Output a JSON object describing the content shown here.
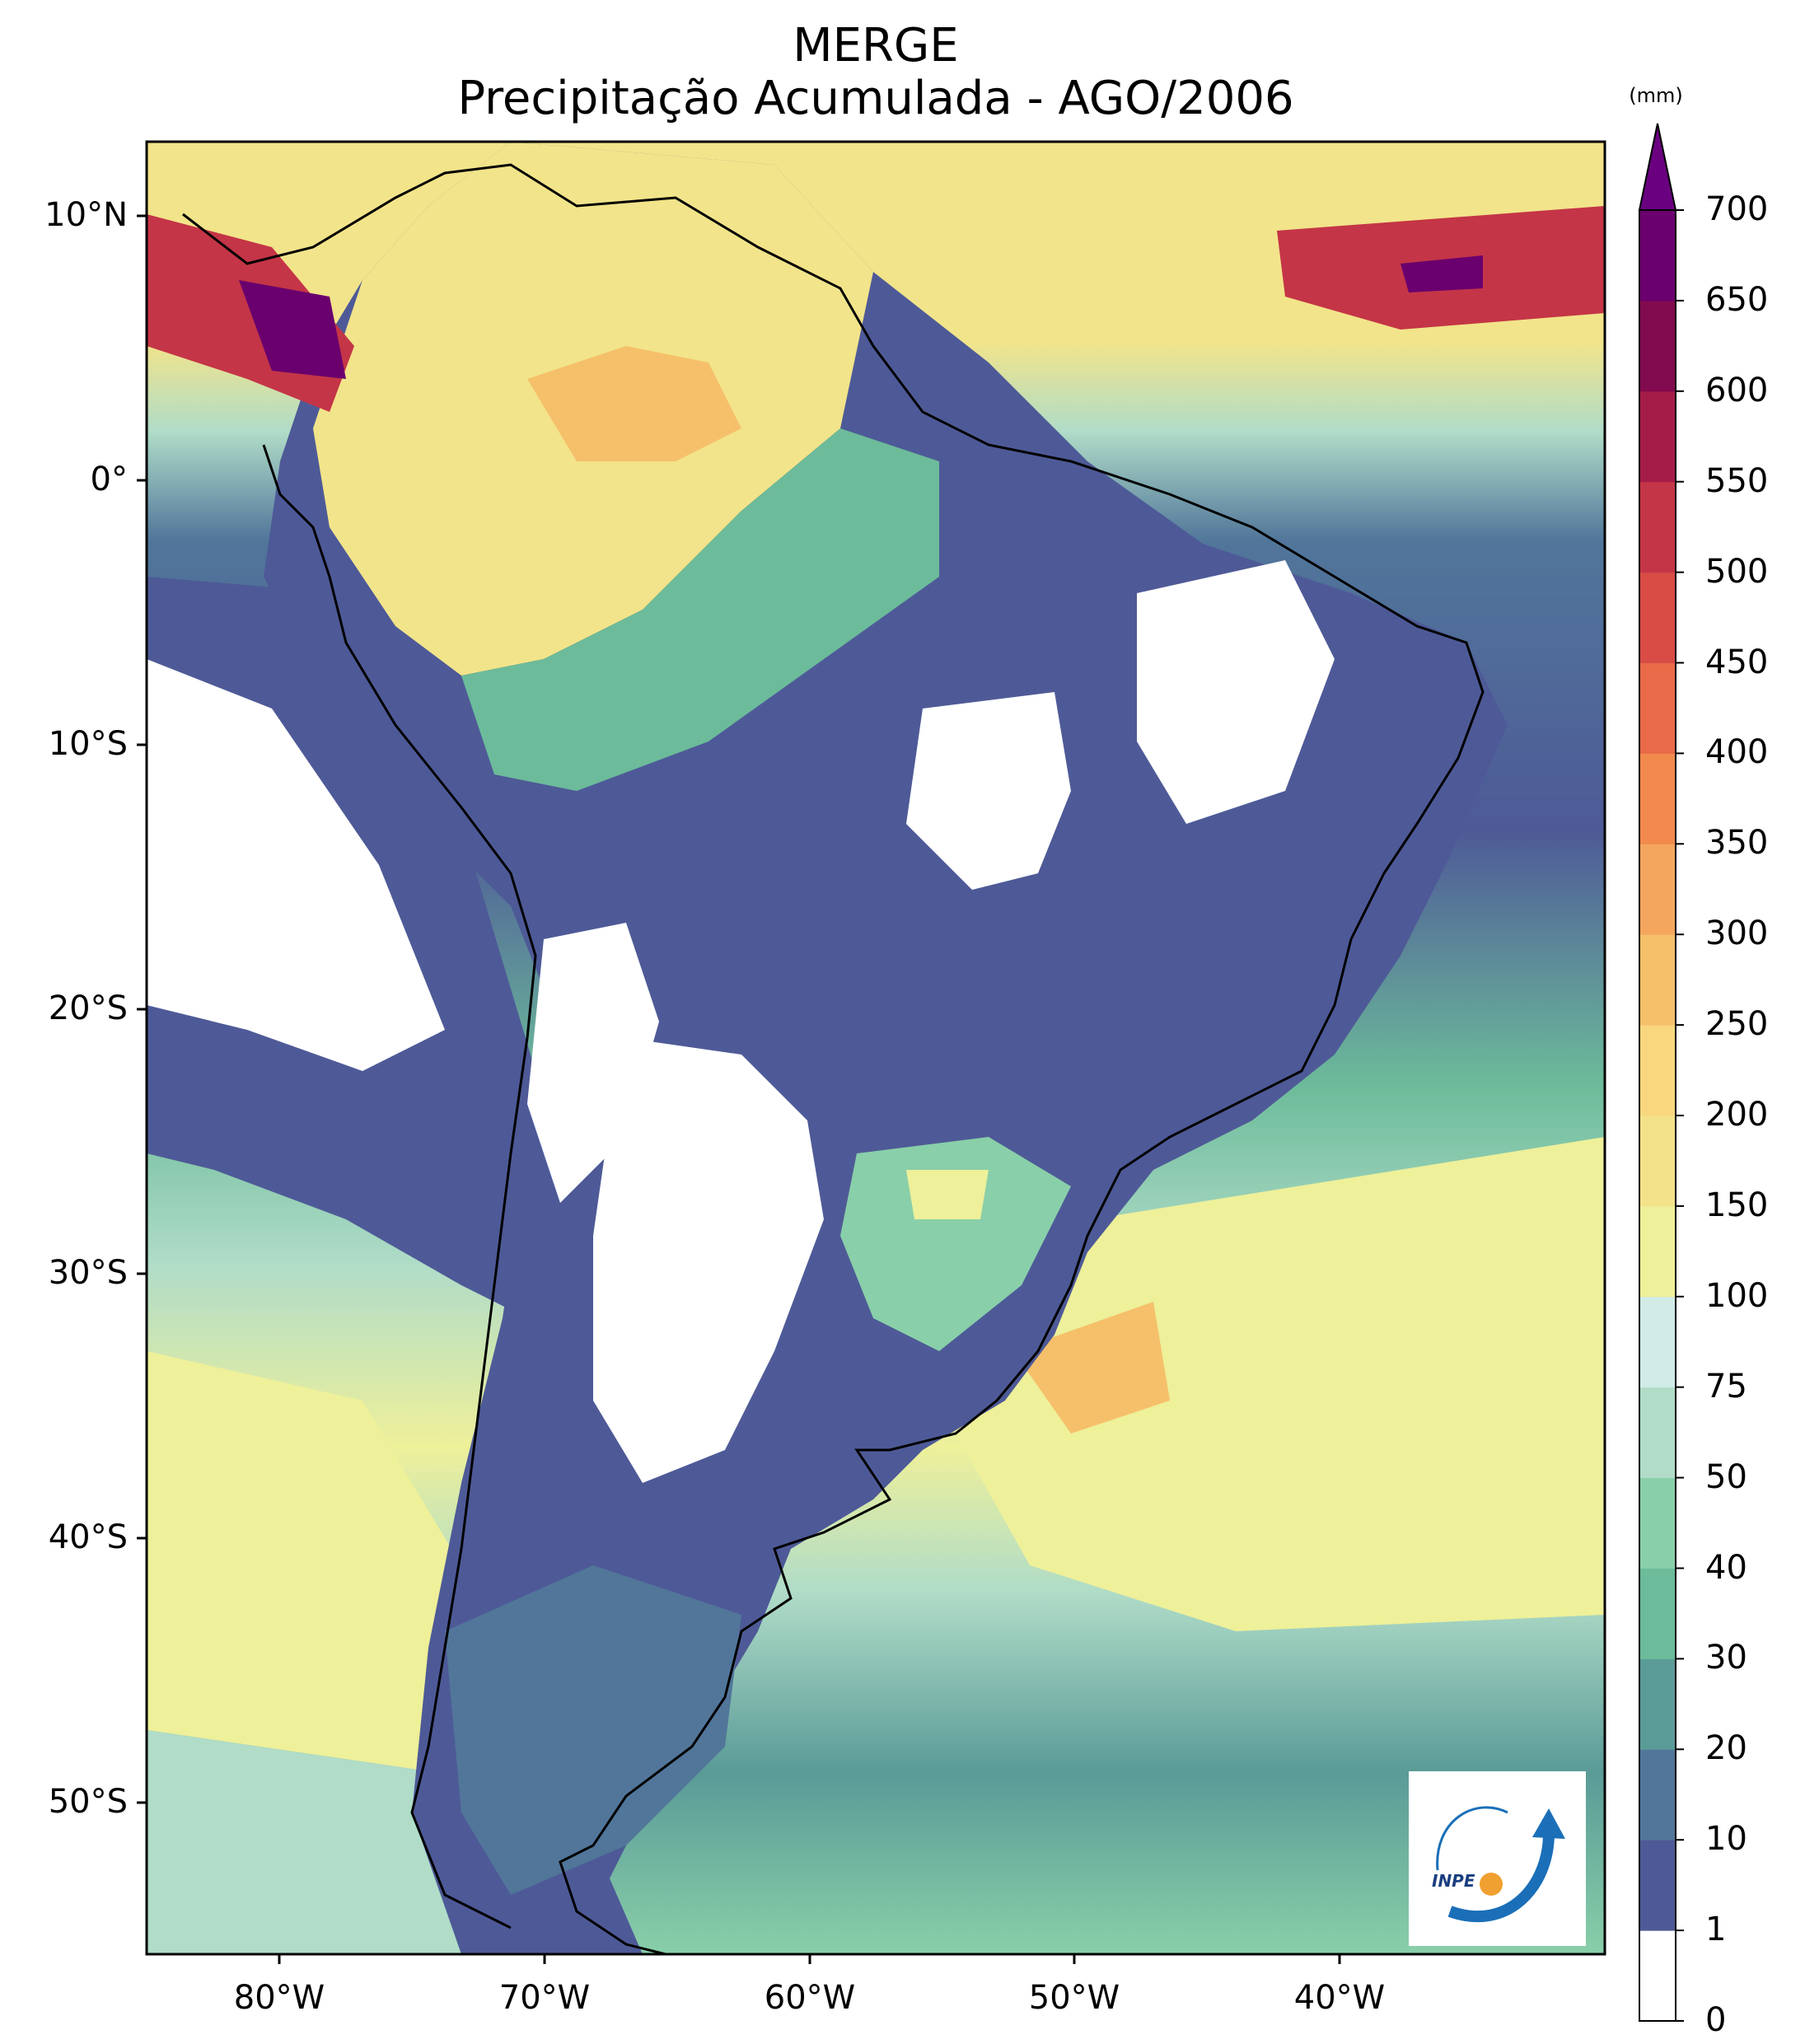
{
  "title": "MERGE",
  "subtitle": "Precipitação Acumulada - AGO/2006",
  "colorbar": {
    "unit": "(mm)",
    "levels": [
      "0",
      "1",
      "10",
      "20",
      "30",
      "40",
      "50",
      "75",
      "100",
      "150",
      "200",
      "250",
      "300",
      "350",
      "400",
      "450",
      "500",
      "550",
      "600",
      "650",
      "700"
    ],
    "colors": [
      "#ffffff",
      "#4e5a97",
      "#51769a",
      "#5a9b97",
      "#6cbb9a",
      "#89cfa9",
      "#b0dcc8",
      "#d1ebe6",
      "#eef09a",
      "#f4e28a",
      "#f8d77e",
      "#f6c06a",
      "#f5a65e",
      "#f28a4e",
      "#e86a48",
      "#d84c45",
      "#c43547",
      "#a61c49",
      "#820a4e",
      "#6a006e"
    ],
    "extend_color": "#6a0080"
  },
  "axes": {
    "lat_labels": [
      "10°N",
      "0°",
      "10°S",
      "20°S",
      "30°S",
      "40°S",
      "50°S"
    ],
    "lon_labels": [
      "80°W",
      "70°W",
      "60°W",
      "50°W",
      "40°W"
    ]
  },
  "map": {
    "extent": {
      "lon_min": -85,
      "lon_max": -30,
      "lat_min": -56,
      "lat_max": 13
    },
    "ocean_color": "#8fd3b4",
    "north_band_color": "#f2e48a",
    "heavy_rain_color": "#c43547"
  },
  "logo": {
    "text": "INPE"
  }
}
